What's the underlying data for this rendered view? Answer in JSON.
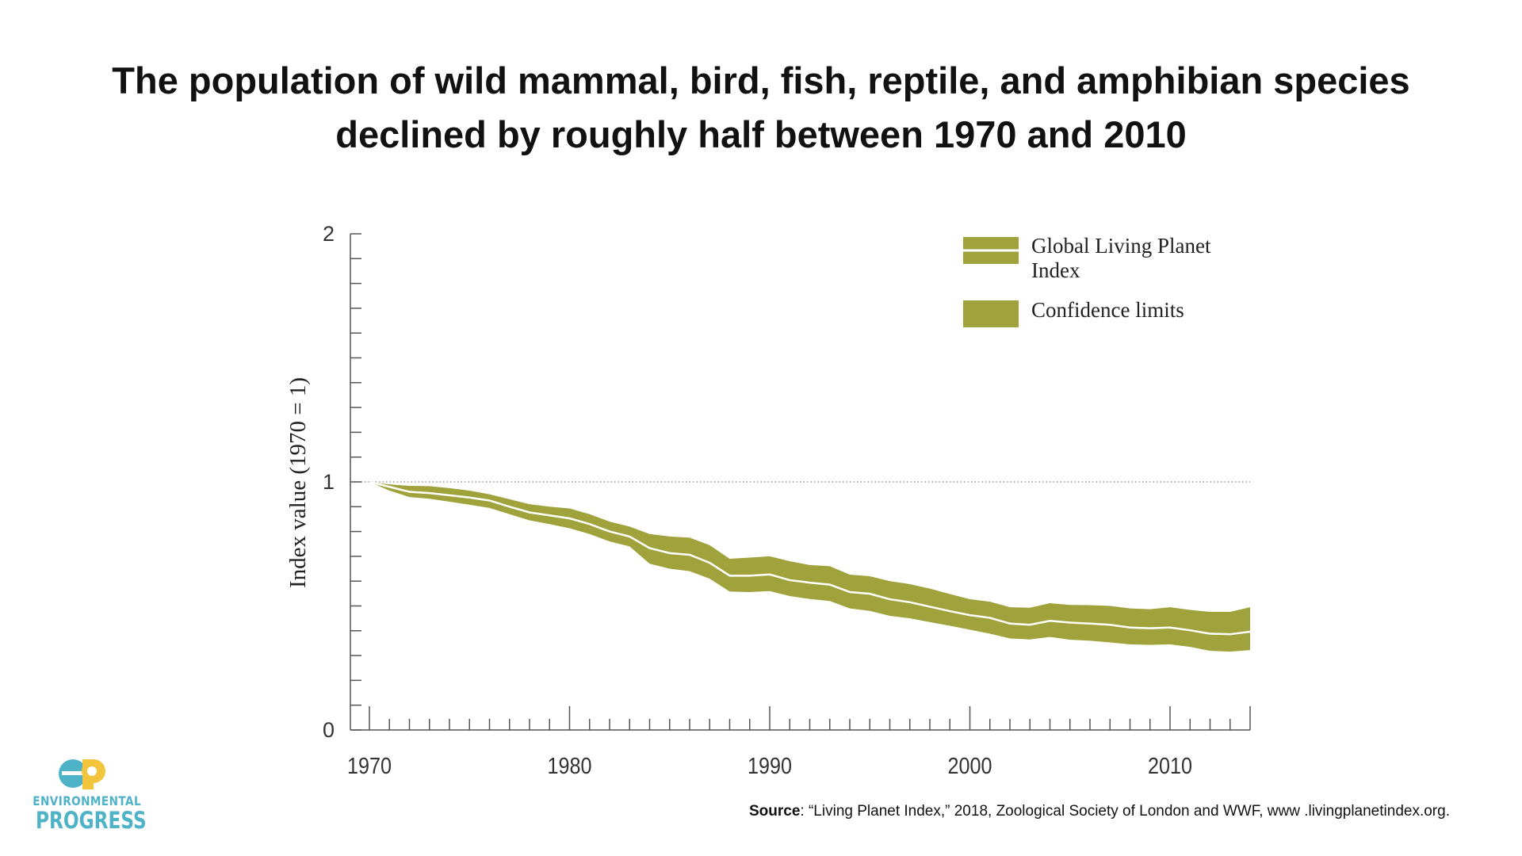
{
  "title": {
    "line1": "The population of wild mammal, bird, fish, reptile, and amphibian species",
    "line2": "declined by roughly half between 1970 and 2010"
  },
  "chart_data": {
    "type": "area",
    "title": "",
    "xlabel": "",
    "ylabel": "Index value (1970 = 1)",
    "xlim": [
      1970,
      2014
    ],
    "ylim": [
      0,
      2
    ],
    "x_ticks": [
      "1970",
      "1980",
      "1990",
      "2000",
      "2010"
    ],
    "y_ticks": [
      "0",
      "1",
      "2"
    ],
    "reference_line": 1,
    "grid": false,
    "legend_position": "top-right",
    "legend": {
      "index_label": "Global Living Planet Index",
      "index_label_line1": "Global Living Planet",
      "index_label_line2": "Index",
      "confidence_label": "Confidence limits"
    },
    "colors": {
      "band": "#a0a23c",
      "index_line": "#ffffff",
      "axis": "#555555"
    },
    "x": [
      1970,
      1971,
      1972,
      1973,
      1974,
      1975,
      1976,
      1977,
      1978,
      1979,
      1980,
      1981,
      1982,
      1983,
      1984,
      1985,
      1986,
      1987,
      1988,
      1989,
      1990,
      1991,
      1992,
      1993,
      1994,
      1995,
      1996,
      1997,
      1998,
      1999,
      2000,
      2001,
      2002,
      2003,
      2004,
      2005,
      2006,
      2007,
      2008,
      2009,
      2010,
      2011,
      2012,
      2013,
      2014
    ],
    "series": [
      {
        "name": "Global Living Planet Index",
        "values": [
          1.0,
          0.98,
          0.96,
          0.955,
          0.946,
          0.937,
          0.925,
          0.9,
          0.877,
          0.865,
          0.853,
          0.83,
          0.8,
          0.78,
          0.733,
          0.713,
          0.706,
          0.674,
          0.622,
          0.622,
          0.627,
          0.604,
          0.594,
          0.586,
          0.556,
          0.549,
          0.527,
          0.515,
          0.497,
          0.479,
          0.463,
          0.452,
          0.429,
          0.424,
          0.44,
          0.433,
          0.429,
          0.424,
          0.413,
          0.41,
          0.413,
          0.402,
          0.388,
          0.386,
          0.396
        ]
      },
      {
        "name": "Confidence limits (upper)",
        "values": [
          1.0,
          0.99,
          0.984,
          0.983,
          0.975,
          0.965,
          0.95,
          0.93,
          0.91,
          0.9,
          0.893,
          0.87,
          0.84,
          0.82,
          0.79,
          0.78,
          0.775,
          0.745,
          0.69,
          0.695,
          0.7,
          0.68,
          0.665,
          0.66,
          0.626,
          0.62,
          0.6,
          0.588,
          0.57,
          0.548,
          0.527,
          0.517,
          0.495,
          0.493,
          0.511,
          0.504,
          0.503,
          0.5,
          0.49,
          0.487,
          0.495,
          0.484,
          0.476,
          0.476,
          0.495
        ]
      },
      {
        "name": "Confidence limits (lower)",
        "values": [
          1.0,
          0.965,
          0.939,
          0.932,
          0.92,
          0.908,
          0.895,
          0.87,
          0.845,
          0.83,
          0.813,
          0.79,
          0.76,
          0.74,
          0.67,
          0.65,
          0.64,
          0.61,
          0.558,
          0.556,
          0.56,
          0.54,
          0.528,
          0.52,
          0.49,
          0.48,
          0.46,
          0.45,
          0.435,
          0.42,
          0.404,
          0.388,
          0.369,
          0.365,
          0.375,
          0.364,
          0.36,
          0.353,
          0.345,
          0.343,
          0.345,
          0.335,
          0.319,
          0.316,
          0.322
        ]
      }
    ]
  },
  "source": {
    "label": "Source",
    "text": ": “Living Planet Index,” 2018, Zoological Society of London and WWF, www .livingplanetindex.org."
  },
  "logo": {
    "line1": "ENVIRONMENTAL",
    "line2": "PROGRESS",
    "colors": {
      "blue": "#4fb3c8",
      "yellow": "#f2c53d"
    }
  }
}
